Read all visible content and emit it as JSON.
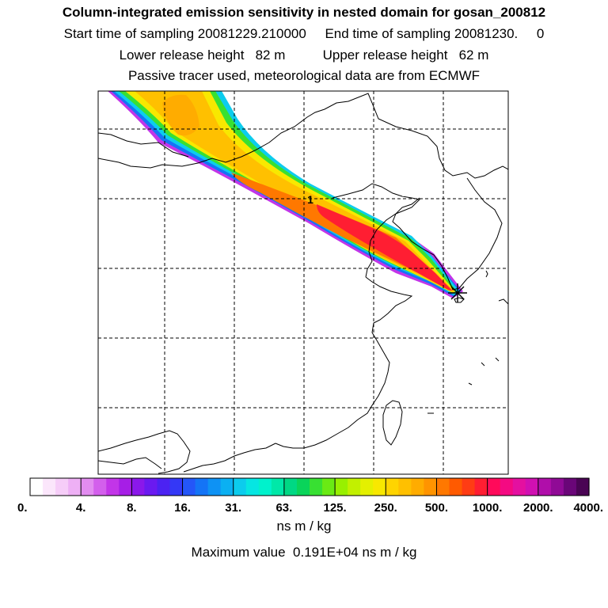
{
  "header": {
    "title": "Column-integrated emission sensitivity in nested domain for gosan_200812",
    "sampling_line": "Start time of sampling 20081229.210000     End time of sampling 20081230.     0",
    "release_line": "Lower release height   82 m          Upper release height   62 m",
    "tracer_line": "Passive tracer used, meteorological data are from ECMWF"
  },
  "map": {
    "type": "footprint-map",
    "region": "East Asia nested domain",
    "receptor": "gosan",
    "plume_label": "1",
    "grid": "dashed"
  },
  "colorbar": {
    "tick_labels": [
      "0.",
      "4.",
      "8.",
      "16.",
      "31.",
      "63.",
      "125.",
      "250.",
      "500.",
      "1000.",
      "2000.",
      "4000."
    ],
    "colors": [
      "#ffffff",
      "#fbe6fb",
      "#f6cdf8",
      "#eeb0f5",
      "#e28cf0",
      "#d35fec",
      "#c235e8",
      "#a61ee6",
      "#8a18ea",
      "#6a1af0",
      "#4c22f2",
      "#3438f6",
      "#2456f8",
      "#1474f6",
      "#0e92f4",
      "#0bb0f2",
      "#0ccced",
      "#06e6e2",
      "#00f2cc",
      "#00e8a8",
      "#00d884",
      "#0ad45a",
      "#38e032",
      "#6aea14",
      "#98f000",
      "#c2f000",
      "#e4f000",
      "#f8e800",
      "#ffd400",
      "#ffc000",
      "#ffac00",
      "#ff9400",
      "#ff7800",
      "#ff5a00",
      "#ff3c14",
      "#ff1e32",
      "#ff0a5a",
      "#f40a82",
      "#e410a0",
      "#d010b2",
      "#b00eaa",
      "#900a96",
      "#6a0678",
      "#4a0454"
    ],
    "units": "ns m / kg"
  },
  "footer": {
    "max_value": "Maximum value  0.191E+04 ns m / kg"
  }
}
